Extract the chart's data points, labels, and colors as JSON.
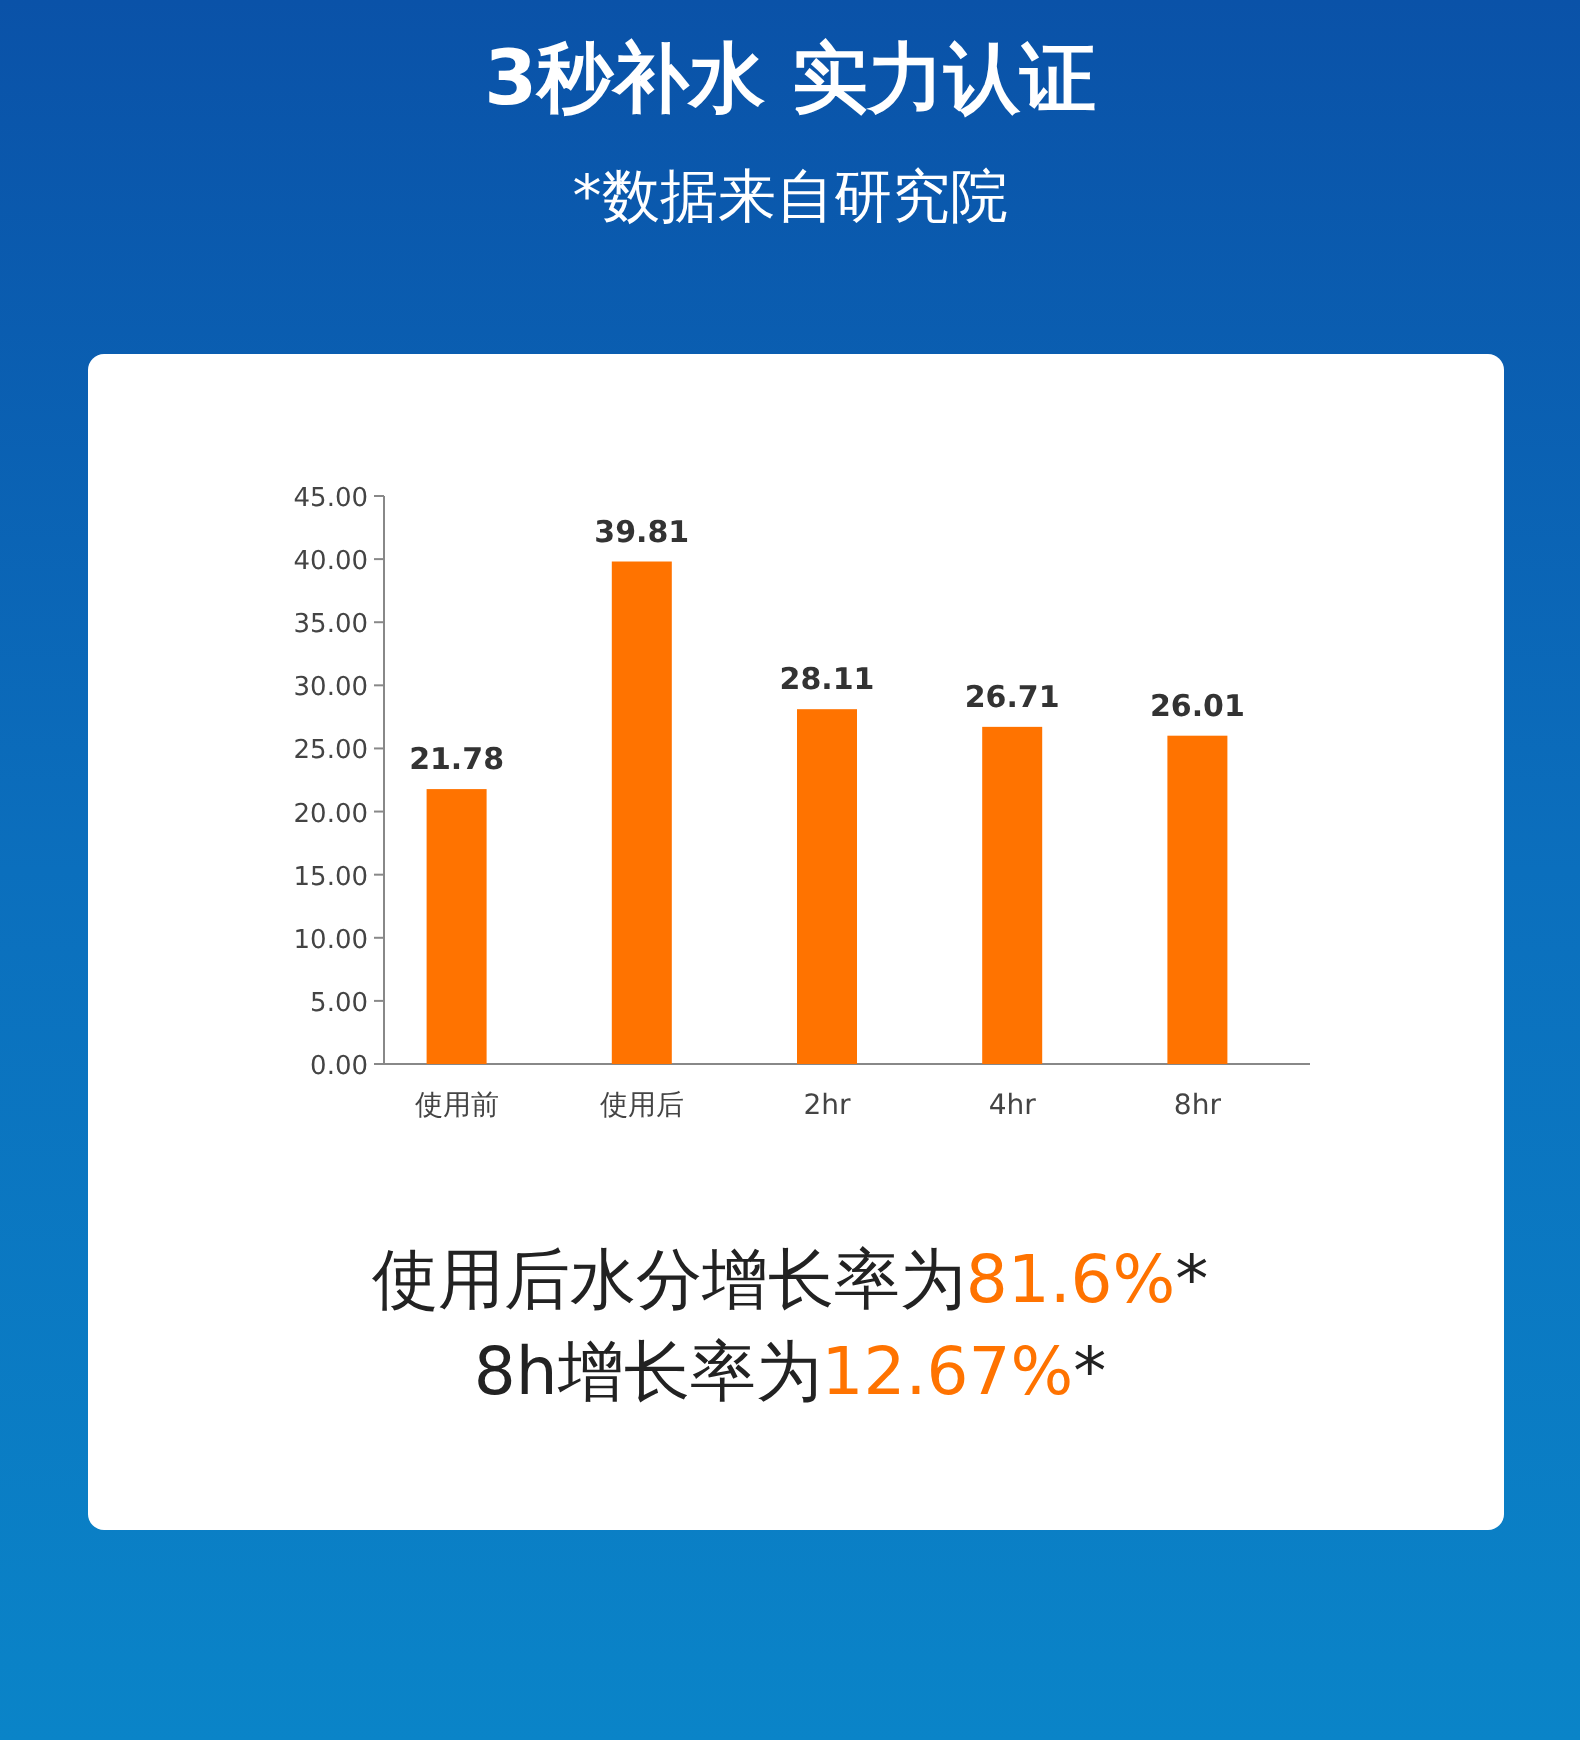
{
  "chart_data": {
    "type": "bar",
    "title": "3秒补水 实力认证",
    "subtitle": "*数据来自研究院",
    "categories": [
      "使用前",
      "使用后",
      "2hr",
      "4hr",
      "8hr"
    ],
    "values": [
      21.78,
      39.81,
      28.11,
      26.71,
      26.01
    ],
    "color": "#ff7300",
    "data_labels": true,
    "ylim": [
      0,
      45
    ],
    "yticks": [
      {
        "value": 0,
        "label": "0.00"
      },
      {
        "value": 5,
        "label": "5.00"
      },
      {
        "value": 10,
        "label": "10.00"
      },
      {
        "value": 15,
        "label": "15.00"
      },
      {
        "value": 20,
        "label": "20.00"
      },
      {
        "value": 25,
        "label": "25.00"
      },
      {
        "value": 30,
        "label": "30.00"
      },
      {
        "value": 35,
        "label": "35.00"
      },
      {
        "value": 40,
        "label": "40.00"
      },
      {
        "value": 45,
        "label": "45.00"
      }
    ],
    "grid": false,
    "annotations": [
      "使用后水分增长率为**81.6%***",
      "8h增长率为**12.67%***"
    ]
  }
}
